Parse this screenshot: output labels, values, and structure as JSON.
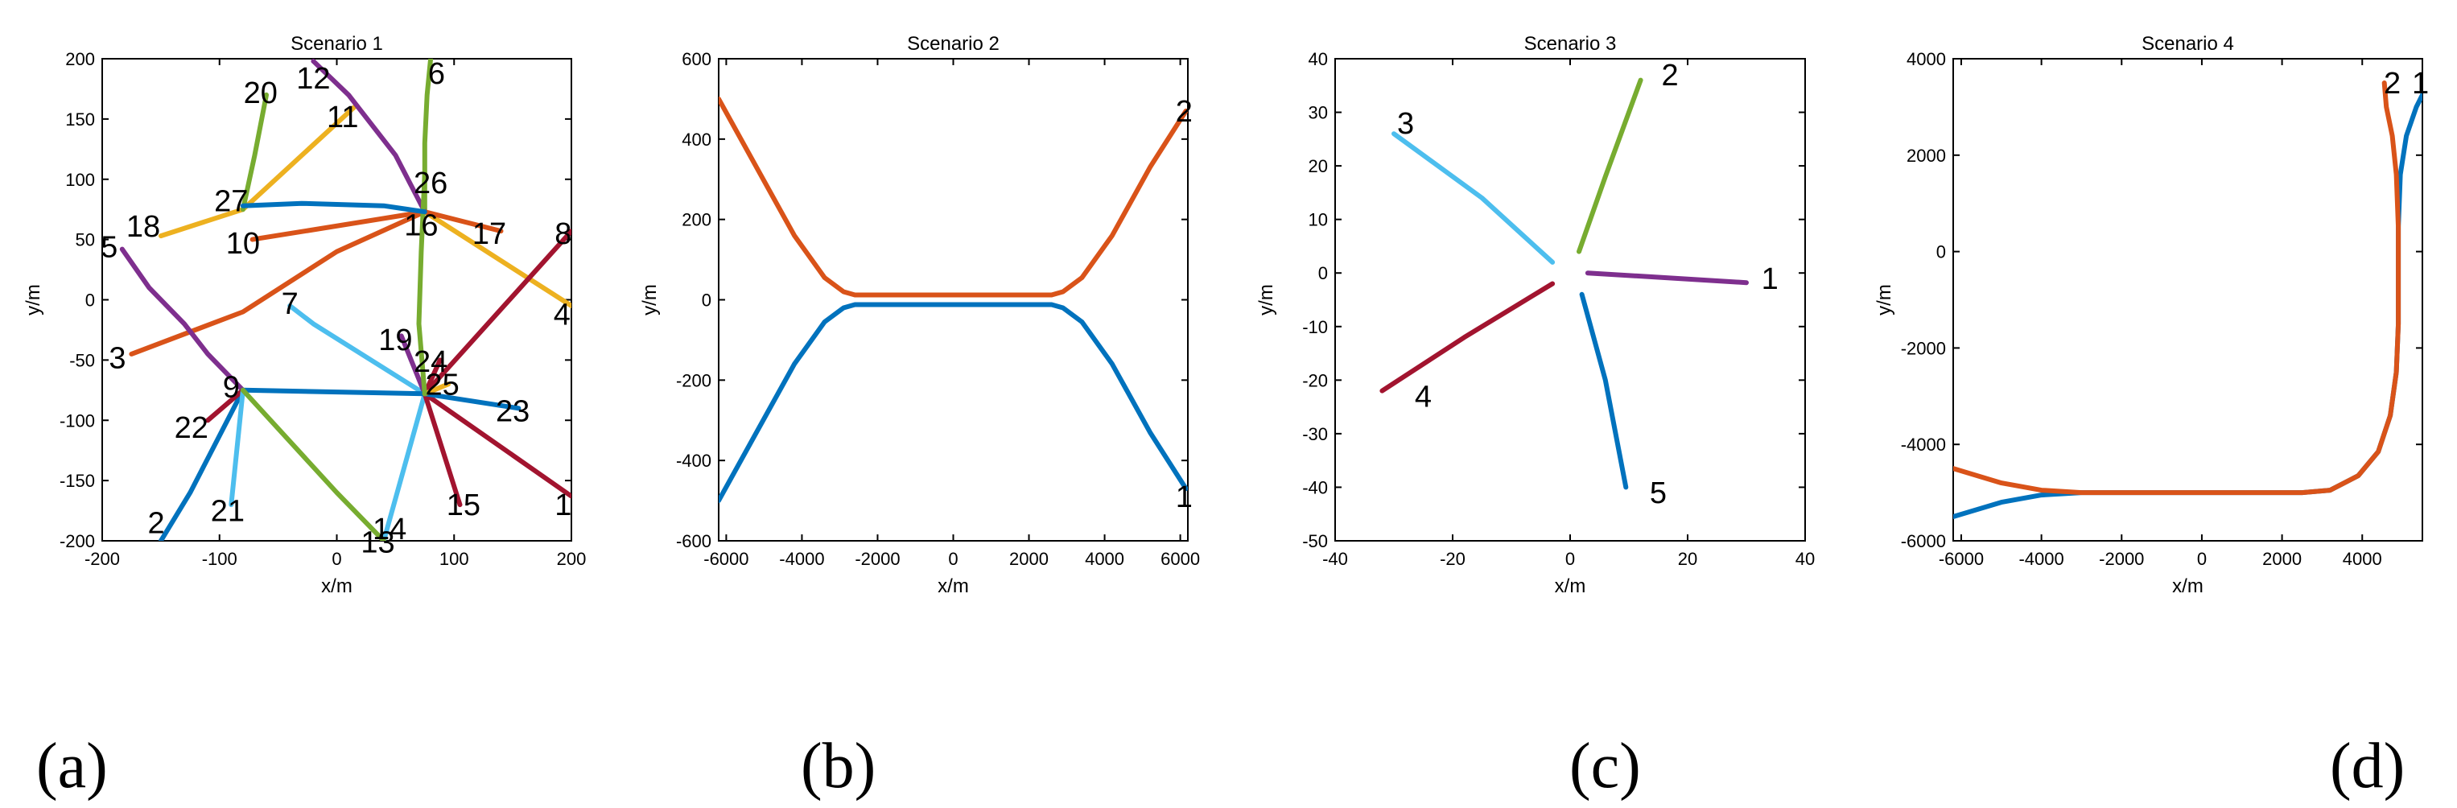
{
  "colors": {
    "blue": "#0072BD",
    "orange": "#D95319",
    "yellow": "#EDB120",
    "purple": "#7E2F8E",
    "green": "#77AC30",
    "cyan": "#4DBEEE",
    "red": "#A2142F"
  },
  "chart_data": [
    {
      "type": "line",
      "title": "Scenario 1",
      "xlabel": "x/m",
      "ylabel": "y/m",
      "xlim": [
        -200,
        200
      ],
      "ylim": [
        -200,
        200
      ],
      "xticks": [
        -200,
        -100,
        0,
        100,
        200
      ],
      "yticks": [
        200,
        150,
        100,
        50,
        0,
        -50,
        -100,
        -150,
        -200
      ],
      "xtick_labels": [
        "-200",
        "-100",
        "0",
        "100",
        "200"
      ],
      "ytick_labels": [
        "200",
        "150",
        "100",
        "50",
        "0",
        "-50",
        "-100",
        "-150",
        "-200"
      ],
      "series": [
        {
          "name": "t1",
          "color": "red",
          "points": [
            [
              200,
              -163
            ],
            [
              75,
              -78
            ]
          ]
        },
        {
          "name": "t2",
          "color": "blue",
          "points": [
            [
              -150,
              -200
            ],
            [
              -125,
              -160
            ],
            [
              -80,
              -75
            ]
          ]
        },
        {
          "name": "t3",
          "color": "orange",
          "points": [
            [
              -175,
              -45
            ],
            [
              -80,
              -10
            ],
            [
              0,
              40
            ],
            [
              75,
              73
            ]
          ]
        },
        {
          "name": "t4",
          "color": "yellow",
          "points": [
            [
              200,
              -5
            ],
            [
              75,
              73
            ]
          ]
        },
        {
          "name": "t5",
          "color": "purple",
          "points": [
            [
              -183,
              42
            ],
            [
              -160,
              10
            ],
            [
              -130,
              -20
            ],
            [
              -110,
              -45
            ],
            [
              -80,
              -75
            ]
          ]
        },
        {
          "name": "t6",
          "color": "green",
          "points": [
            [
              80,
              200
            ],
            [
              77,
              170
            ],
            [
              75,
              130
            ],
            [
              75,
              73
            ]
          ]
        },
        {
          "name": "t8",
          "color": "red",
          "points": [
            [
              200,
              57
            ],
            [
              75,
              -78
            ]
          ]
        },
        {
          "name": "t9_22",
          "color": "red",
          "points": [
            [
              -110,
              -100
            ],
            [
              -80,
              -75
            ]
          ]
        },
        {
          "name": "t7",
          "color": "cyan",
          "points": [
            [
              -40,
              -5
            ],
            [
              -20,
              -20
            ],
            [
              75,
              -78
            ]
          ]
        },
        {
          "name": "t10",
          "color": "orange",
          "points": [
            [
              -72,
              50
            ],
            [
              75,
              73
            ]
          ]
        },
        {
          "name": "t11",
          "color": "yellow",
          "points": [
            [
              15,
              160
            ],
            [
              -80,
              75
            ]
          ]
        },
        {
          "name": "t12",
          "color": "purple",
          "points": [
            [
              -20,
              198
            ],
            [
              10,
              170
            ],
            [
              50,
              120
            ],
            [
              75,
              73
            ]
          ]
        },
        {
          "name": "t13_14",
          "color": "cyan",
          "points": [
            [
              40,
              -200
            ],
            [
              75,
              -78
            ]
          ]
        },
        {
          "name": "t15",
          "color": "red",
          "points": [
            [
              105,
              -170
            ],
            [
              75,
              -78
            ]
          ]
        },
        {
          "name": "t17",
          "color": "orange",
          "points": [
            [
              140,
              57
            ],
            [
              75,
              73
            ]
          ]
        },
        {
          "name": "t18",
          "color": "yellow",
          "points": [
            [
              -150,
              53
            ],
            [
              -80,
              75
            ]
          ]
        },
        {
          "name": "t19",
          "color": "purple",
          "points": [
            [
              55,
              -30
            ],
            [
              75,
              -78
            ]
          ]
        },
        {
          "name": "t20",
          "color": "green",
          "points": [
            [
              -60,
              170
            ],
            [
              -70,
              120
            ],
            [
              -80,
              75
            ]
          ]
        },
        {
          "name": "t21",
          "color": "cyan",
          "points": [
            [
              -90,
              -170
            ],
            [
              -80,
              -75
            ]
          ]
        },
        {
          "name": "t23",
          "color": "blue",
          "points": [
            [
              155,
              -90
            ],
            [
              75,
              -78
            ],
            [
              -80,
              -75
            ]
          ]
        },
        {
          "name": "t24",
          "color": "red",
          "points": [
            [
              88,
              -50
            ],
            [
              75,
              -78
            ]
          ]
        },
        {
          "name": "t25",
          "color": "yellow",
          "points": [
            [
              95,
              -70
            ],
            [
              75,
              -78
            ]
          ]
        },
        {
          "name": "t26",
          "color": "green",
          "points": [
            [
              75,
              105
            ],
            [
              72,
              40
            ],
            [
              70,
              -20
            ],
            [
              75,
              -78
            ]
          ]
        },
        {
          "name": "t27",
          "color": "blue",
          "points": [
            [
              -80,
              78
            ],
            [
              -30,
              80
            ],
            [
              40,
              78
            ],
            [
              75,
              73
            ]
          ]
        },
        {
          "name": "t9_13",
          "color": "green",
          "points": [
            [
              -80,
              -75
            ],
            [
              0,
              -160
            ],
            [
              40,
              -200
            ]
          ]
        }
      ],
      "annotations": [
        {
          "text": "20",
          "x": -65,
          "y": 172
        },
        {
          "text": "12",
          "x": -20,
          "y": 184
        },
        {
          "text": "6",
          "x": 85,
          "y": 188
        },
        {
          "text": "11",
          "x": 5,
          "y": 152
        },
        {
          "text": "26",
          "x": 80,
          "y": 97
        },
        {
          "text": "27",
          "x": -90,
          "y": 82
        },
        {
          "text": "18",
          "x": -165,
          "y": 61
        },
        {
          "text": "16",
          "x": 72,
          "y": 62
        },
        {
          "text": "17",
          "x": 130,
          "y": 55
        },
        {
          "text": "8",
          "x": 193,
          "y": 55
        },
        {
          "text": "10",
          "x": -80,
          "y": 47
        },
        {
          "text": "5",
          "x": -194,
          "y": 44
        },
        {
          "text": "7",
          "x": -40,
          "y": -3
        },
        {
          "text": "4",
          "x": 192,
          "y": -12
        },
        {
          "text": "19",
          "x": 50,
          "y": -33
        },
        {
          "text": "24",
          "x": 80,
          "y": -51
        },
        {
          "text": "3",
          "x": -187,
          "y": -48
        },
        {
          "text": "25",
          "x": 90,
          "y": -70
        },
        {
          "text": "9",
          "x": -90,
          "y": -72
        },
        {
          "text": "23",
          "x": 150,
          "y": -92
        },
        {
          "text": "22",
          "x": -124,
          "y": -106
        },
        {
          "text": "15",
          "x": 108,
          "y": -170
        },
        {
          "text": "21",
          "x": -93,
          "y": -175
        },
        {
          "text": "1",
          "x": 193,
          "y": -170
        },
        {
          "text": "2",
          "x": -154,
          "y": -185
        },
        {
          "text": "14",
          "x": 45,
          "y": -190
        },
        {
          "text": "13",
          "x": 35,
          "y": -201
        }
      ]
    },
    {
      "type": "line",
      "title": "Scenario 2",
      "xlabel": "x/m",
      "ylabel": "y/m",
      "xlim": [
        -6200,
        6200
      ],
      "ylim": [
        -600,
        600
      ],
      "xticks": [
        -6000,
        -4000,
        -2000,
        0,
        2000,
        4000,
        6000
      ],
      "yticks": [
        600,
        400,
        200,
        0,
        -200,
        -400,
        -600
      ],
      "xtick_labels": [
        "-6000",
        "-4000",
        "-2000",
        "0",
        "2000",
        "4000",
        "6000"
      ],
      "ytick_labels": [
        "600",
        "400",
        "200",
        "0",
        "-200",
        "-400",
        "-600"
      ],
      "series": [
        {
          "name": "1",
          "color": "blue",
          "points": [
            [
              -6200,
              -500
            ],
            [
              -5200,
              -330
            ],
            [
              -4200,
              -160
            ],
            [
              -3400,
              -55
            ],
            [
              -2900,
              -20
            ],
            [
              -2600,
              -12
            ],
            [
              2600,
              -12
            ],
            [
              2900,
              -20
            ],
            [
              3400,
              -55
            ],
            [
              4200,
              -160
            ],
            [
              5200,
              -330
            ],
            [
              6150,
              -470
            ]
          ]
        },
        {
          "name": "2",
          "color": "orange",
          "points": [
            [
              -6200,
              500
            ],
            [
              -5200,
              330
            ],
            [
              -4200,
              160
            ],
            [
              -3400,
              55
            ],
            [
              -2900,
              20
            ],
            [
              -2600,
              12
            ],
            [
              2600,
              12
            ],
            [
              2900,
              20
            ],
            [
              3400,
              55
            ],
            [
              4200,
              160
            ],
            [
              5200,
              330
            ],
            [
              6150,
              470
            ]
          ]
        }
      ],
      "annotations": [
        {
          "text": "2",
          "x": 6100,
          "y": 470
        },
        {
          "text": "1",
          "x": 6100,
          "y": -490
        }
      ]
    },
    {
      "type": "line",
      "title": "Scenario 3",
      "xlabel": "x/m",
      "ylabel": "y/m",
      "xlim": [
        -40,
        40
      ],
      "ylim": [
        -50,
        40
      ],
      "xticks": [
        -40,
        -20,
        0,
        20,
        40
      ],
      "yticks": [
        40,
        30,
        20,
        10,
        0,
        -10,
        -20,
        -30,
        -40,
        -50
      ],
      "xtick_labels": [
        "-40",
        "-20",
        "0",
        "20",
        "40"
      ],
      "ytick_labels": [
        "40",
        "30",
        "20",
        "10",
        "0",
        "-10",
        "-20",
        "-30",
        "-40",
        "-50"
      ],
      "series": [
        {
          "name": "1",
          "color": "purple",
          "points": [
            [
              3,
              0
            ],
            [
              15,
              -0.8
            ],
            [
              30,
              -1.8
            ]
          ]
        },
        {
          "name": "2",
          "color": "green",
          "points": [
            [
              1.5,
              4
            ],
            [
              6,
              18
            ],
            [
              12,
              36
            ]
          ]
        },
        {
          "name": "3",
          "color": "cyan",
          "points": [
            [
              -3,
              2
            ],
            [
              -15,
              14
            ],
            [
              -30,
              26
            ]
          ]
        },
        {
          "name": "4",
          "color": "red",
          "points": [
            [
              -3,
              -2
            ],
            [
              -18,
              -12
            ],
            [
              -32,
              -22
            ]
          ]
        },
        {
          "name": "5",
          "color": "blue",
          "points": [
            [
              2,
              -4
            ],
            [
              6,
              -20
            ],
            [
              9.5,
              -40
            ]
          ]
        }
      ],
      "annotations": [
        {
          "text": "1",
          "x": 34,
          "y": -1
        },
        {
          "text": "2",
          "x": 17,
          "y": 37
        },
        {
          "text": "3",
          "x": -28,
          "y": 28
        },
        {
          "text": "4",
          "x": -25,
          "y": -23
        },
        {
          "text": "5",
          "x": 15,
          "y": -41
        }
      ]
    },
    {
      "type": "line",
      "title": "Scenario 4",
      "xlabel": "x/m",
      "ylabel": "y/m",
      "xlim": [
        -6200,
        5500
      ],
      "ylim": [
        -6000,
        4000
      ],
      "xticks": [
        -6000,
        -4000,
        -2000,
        0,
        2000,
        4000
      ],
      "yticks": [
        4000,
        2000,
        0,
        -2000,
        -4000,
        -6000
      ],
      "xtick_labels": [
        "-6000",
        "-4000",
        "-2000",
        "0",
        "2000",
        "4000"
      ],
      "ytick_labels": [
        "4000",
        "2000",
        "0",
        "-2000",
        "-4000",
        "-6000"
      ],
      "series": [
        {
          "name": "1",
          "color": "blue",
          "points": [
            [
              -6200,
              -5500
            ],
            [
              -5000,
              -5200
            ],
            [
              -4000,
              -5050
            ],
            [
              -3000,
              -5000
            ],
            [
              2500,
              -5000
            ],
            [
              3200,
              -4950
            ],
            [
              3900,
              -4650
            ],
            [
              4400,
              -4150
            ],
            [
              4700,
              -3400
            ],
            [
              4850,
              -2500
            ],
            [
              4900,
              -1500
            ],
            [
              4900,
              500
            ],
            [
              4950,
              1600
            ],
            [
              5100,
              2400
            ],
            [
              5350,
              3000
            ],
            [
              5500,
              3250
            ]
          ]
        },
        {
          "name": "2",
          "color": "orange",
          "points": [
            [
              -6200,
              -4500
            ],
            [
              -5000,
              -4800
            ],
            [
              -4000,
              -4950
            ],
            [
              -3000,
              -5000
            ],
            [
              2500,
              -5000
            ],
            [
              3200,
              -4950
            ],
            [
              3900,
              -4650
            ],
            [
              4400,
              -4150
            ],
            [
              4700,
              -3400
            ],
            [
              4850,
              -2500
            ],
            [
              4900,
              -1500
            ],
            [
              4900,
              500
            ],
            [
              4850,
              1600
            ],
            [
              4750,
              2400
            ],
            [
              4600,
              3000
            ],
            [
              4550,
              3500
            ]
          ]
        }
      ],
      "annotations": [
        {
          "text": "2",
          "x": 4750,
          "y": 3500
        },
        {
          "text": "1",
          "x": 5450,
          "y": 3500
        }
      ]
    }
  ],
  "panel_labels": [
    "(a)",
    "(b)",
    "(c)",
    "(d)"
  ]
}
